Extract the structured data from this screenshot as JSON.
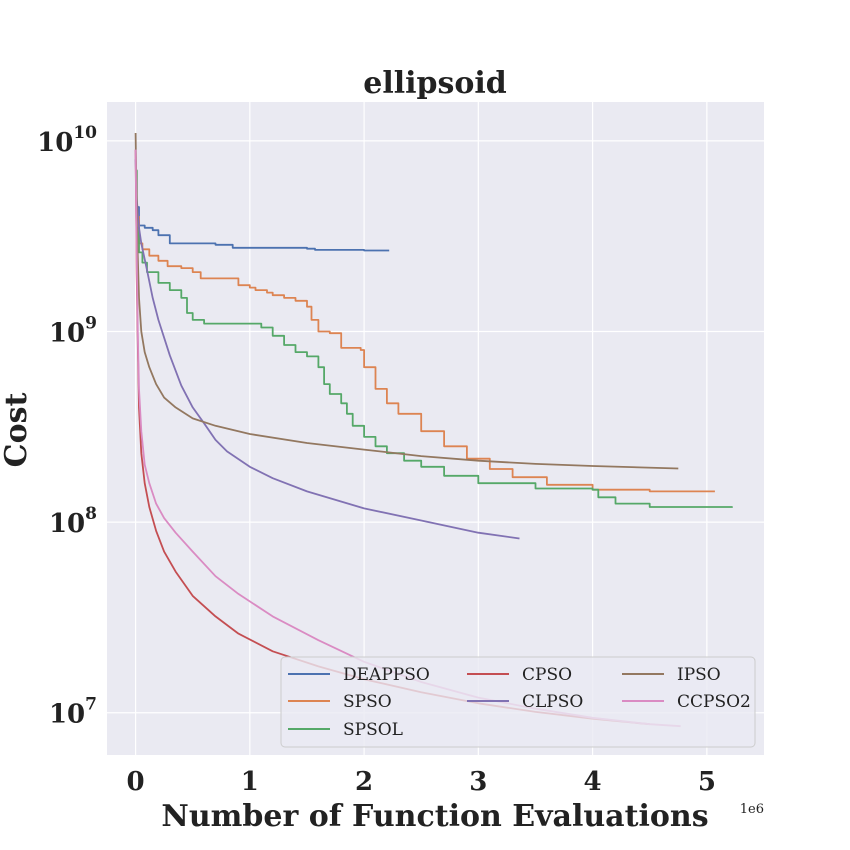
{
  "chart_data": {
    "type": "line",
    "title": "ellipsoid",
    "xlabel": "Number of Function Evaluations",
    "ylabel": "Cost",
    "x_offset_label": "1e6",
    "xscale": "linear",
    "yscale": "log",
    "xlim": [
      -0.25,
      5.5
    ],
    "ylim": [
      6000000,
      16000000000
    ],
    "x_ticks": [
      {
        "value": 0,
        "label": "0"
      },
      {
        "value": 1,
        "label": "1"
      },
      {
        "value": 2,
        "label": "2"
      },
      {
        "value": 3,
        "label": "3"
      },
      {
        "value": 4,
        "label": "4"
      },
      {
        "value": 5,
        "label": "5"
      }
    ],
    "y_ticks": [
      {
        "value": 10000000,
        "base": "10",
        "exp": "7"
      },
      {
        "value": 100000000,
        "base": "10",
        "exp": "8"
      },
      {
        "value": 1000000000,
        "base": "10",
        "exp": "9"
      },
      {
        "value": 10000000000,
        "base": "10",
        "exp": "10"
      }
    ],
    "grid": true,
    "legend_placement": "lower-right",
    "legend_columns": 3,
    "legend_order": [
      "DEAPPSO",
      "SPSO",
      "SPSOL",
      "CPSO",
      "CLPSO",
      "IPSO",
      "CCPSO2"
    ],
    "series": [
      {
        "name": "DEAPPSO",
        "color": "#4c72b0",
        "step": true,
        "x": [
          0,
          0.01,
          0.03,
          0.08,
          0.15,
          0.2,
          0.3,
          0.5,
          0.7,
          0.85,
          1.0,
          1.2,
          1.5,
          1.57,
          1.8,
          2.0,
          2.22
        ],
        "y": [
          7000000000,
          4500000000,
          3600000000,
          3500000000,
          3400000000,
          3200000000,
          2900000000,
          2900000000,
          2850000000,
          2750000000,
          2750000000,
          2750000000,
          2720000000,
          2680000000,
          2680000000,
          2660000000,
          2660000000
        ]
      },
      {
        "name": "SPSO",
        "color": "#dd8452",
        "step": true,
        "x": [
          0,
          0.01,
          0.03,
          0.06,
          0.12,
          0.2,
          0.28,
          0.4,
          0.5,
          0.57,
          0.75,
          0.9,
          1.0,
          1.05,
          1.15,
          1.2,
          1.3,
          1.4,
          1.5,
          1.54,
          1.6,
          1.7,
          1.8,
          1.9,
          1.97,
          2.0,
          2.1,
          2.2,
          2.3,
          2.5,
          2.7,
          2.9,
          3.1,
          3.3,
          3.6,
          4.0,
          4.5,
          5.07
        ],
        "y": [
          7000000000,
          4000000000,
          2900000000,
          2700000000,
          2500000000,
          2350000000,
          2200000000,
          2150000000,
          2050000000,
          1900000000,
          1900000000,
          1750000000,
          1700000000,
          1650000000,
          1600000000,
          1550000000,
          1500000000,
          1450000000,
          1350000000,
          1150000000,
          1000000000,
          980000000,
          820000000,
          820000000,
          800000000,
          650000000,
          500000000,
          420000000,
          370000000,
          300000000,
          250000000,
          215000000,
          190000000,
          172000000,
          157000000,
          148000000,
          145000000,
          145000000
        ]
      },
      {
        "name": "SPSOL",
        "color": "#55a868",
        "step": true,
        "x": [
          0,
          0.01,
          0.03,
          0.06,
          0.1,
          0.2,
          0.3,
          0.4,
          0.45,
          0.5,
          0.6,
          0.8,
          1.0,
          1.1,
          1.2,
          1.3,
          1.4,
          1.5,
          1.6,
          1.65,
          1.7,
          1.8,
          1.85,
          1.9,
          2.0,
          2.1,
          2.2,
          2.35,
          2.5,
          2.7,
          3.0,
          3.5,
          4.0,
          4.05,
          4.2,
          4.5,
          5.22
        ],
        "y": [
          7000000000,
          3500000000,
          2600000000,
          2300000000,
          2050000000,
          1800000000,
          1650000000,
          1500000000,
          1250000000,
          1150000000,
          1100000000,
          1100000000,
          1100000000,
          1050000000,
          950000000,
          850000000,
          780000000,
          740000000,
          650000000,
          530000000,
          470000000,
          420000000,
          370000000,
          320000000,
          280000000,
          250000000,
          230000000,
          210000000,
          195000000,
          175000000,
          160000000,
          150000000,
          148000000,
          135000000,
          125000000,
          120000000,
          119000000
        ]
      },
      {
        "name": "CPSO",
        "color": "#c44e52",
        "step": false,
        "x": [
          0,
          0.01,
          0.02,
          0.03,
          0.05,
          0.08,
          0.12,
          0.18,
          0.25,
          0.35,
          0.5,
          0.7,
          0.9,
          1.2,
          1.6,
          2.0,
          2.5,
          3.0,
          3.5,
          4.0,
          4.5
        ],
        "y": [
          9000000000,
          2000000000,
          800000000,
          400000000,
          230000000,
          160000000,
          120000000,
          90000000,
          70000000,
          55000000,
          41000000,
          32000000,
          26000000,
          21000000,
          17500000,
          15000000,
          12800000,
          11200000,
          10100000,
          9300000,
          8700000
        ]
      },
      {
        "name": "CLPSO",
        "color": "#8172b3",
        "step": false,
        "x": [
          0,
          0.01,
          0.03,
          0.05,
          0.1,
          0.15,
          0.2,
          0.3,
          0.4,
          0.5,
          0.6,
          0.7,
          0.8,
          1.0,
          1.2,
          1.5,
          2.0,
          2.5,
          3.0,
          3.36
        ],
        "y": [
          8000000000,
          5000000000,
          3500000000,
          2900000000,
          2100000000,
          1500000000,
          1150000000,
          750000000,
          520000000,
          400000000,
          330000000,
          270000000,
          235000000,
          195000000,
          170000000,
          145000000,
          118000000,
          102000000,
          88000000,
          82000000
        ]
      },
      {
        "name": "IPSO",
        "color": "#937860",
        "step": false,
        "x": [
          0,
          0.005,
          0.015,
          0.03,
          0.05,
          0.08,
          0.12,
          0.18,
          0.25,
          0.35,
          0.5,
          0.7,
          1.0,
          1.5,
          2.0,
          2.5,
          3.0,
          3.5,
          4.0,
          4.75
        ],
        "y": [
          11000000000,
          7000000000,
          3000000000,
          1500000000,
          1000000000,
          780000000,
          650000000,
          530000000,
          450000000,
          400000000,
          350000000,
          320000000,
          290000000,
          260000000,
          240000000,
          222000000,
          210000000,
          202000000,
          197000000,
          191000000
        ]
      },
      {
        "name": "CCPSO2",
        "color": "#da8bc3",
        "step": false,
        "x": [
          0,
          0.01,
          0.02,
          0.03,
          0.05,
          0.08,
          0.12,
          0.18,
          0.25,
          0.35,
          0.5,
          0.7,
          0.9,
          1.2,
          1.6,
          2.0,
          2.5,
          3.0,
          3.5,
          4.0,
          4.5,
          4.77
        ],
        "y": [
          9000000000,
          2500000000,
          900000000,
          500000000,
          300000000,
          200000000,
          160000000,
          125000000,
          105000000,
          88000000,
          70000000,
          52000000,
          42000000,
          32000000,
          24000000,
          18500000,
          14500000,
          12000000,
          10500000,
          9400000,
          8700000,
          8500000
        ]
      }
    ]
  }
}
